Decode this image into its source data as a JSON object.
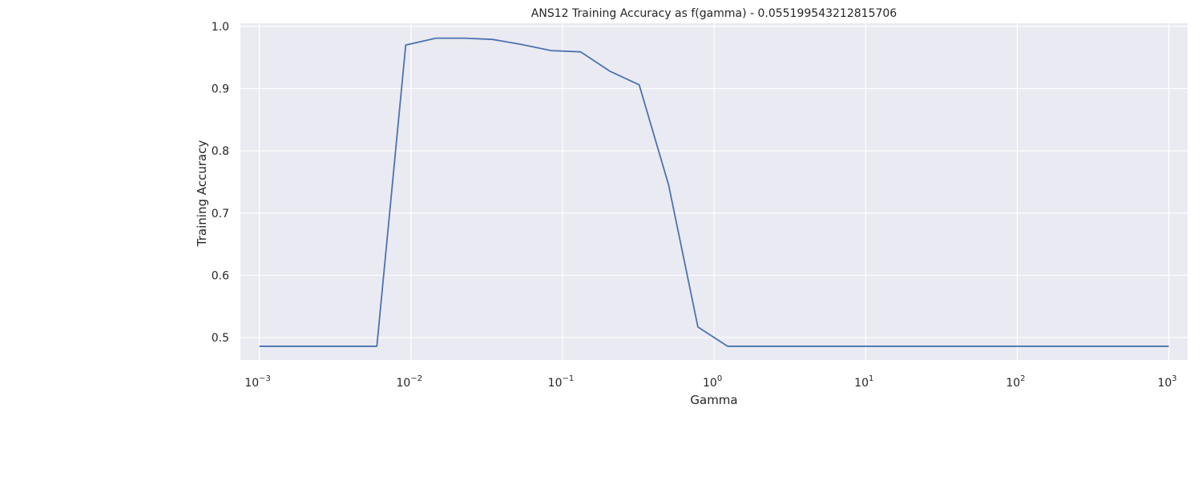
{
  "chart_data": {
    "type": "line",
    "title": "ANS12 Training Accuracy as f(gamma) - 0.055199543212815706",
    "xlabel": "Gamma",
    "ylabel": "Training Accuracy",
    "xscale": "log",
    "xlim": [
      0.00075,
      1330
    ],
    "ylim": [
      0.464,
      1.005
    ],
    "grid": true,
    "x_ticks": [
      {
        "base": "10",
        "exp": "−3",
        "value": 0.001
      },
      {
        "base": "10",
        "exp": "−2",
        "value": 0.01
      },
      {
        "base": "10",
        "exp": "−1",
        "value": 0.1
      },
      {
        "base": "10",
        "exp": "0",
        "value": 1
      },
      {
        "base": "10",
        "exp": "1",
        "value": 10
      },
      {
        "base": "10",
        "exp": "2",
        "value": 100
      },
      {
        "base": "10",
        "exp": "3",
        "value": 1000
      }
    ],
    "y_ticks": [
      "0.5",
      "0.6",
      "0.7",
      "0.8",
      "0.9",
      "1.0"
    ],
    "series": [
      {
        "color": "#4c72b0",
        "x": [
          0.001,
          0.00596,
          0.00924,
          0.01463,
          0.0226,
          0.0346,
          0.0534,
          0.0842,
          0.1318,
          0.2053,
          0.3207,
          0.5016,
          0.7823,
          1.2267,
          1000
        ],
        "y": [
          0.486,
          0.486,
          0.97,
          0.981,
          0.981,
          0.979,
          0.971,
          0.961,
          0.959,
          0.928,
          0.906,
          0.745,
          0.517,
          0.486,
          0.486
        ]
      }
    ]
  }
}
